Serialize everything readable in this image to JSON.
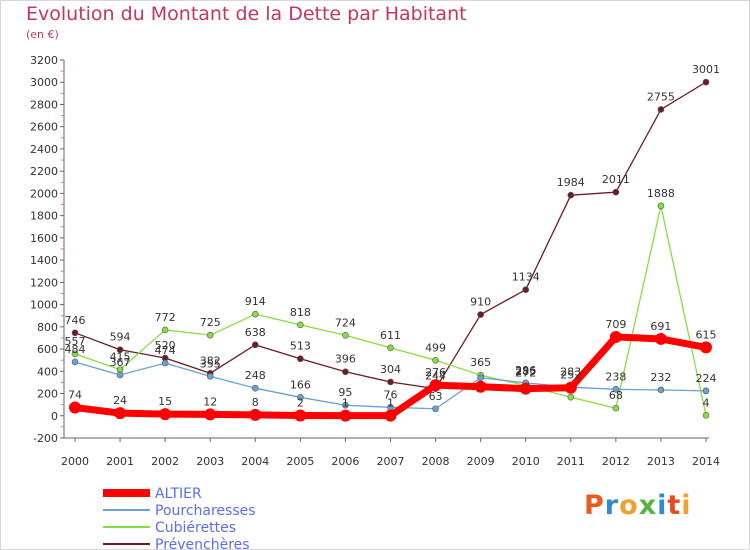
{
  "chart_data": {
    "type": "line",
    "title": "Evolution du Montant de la Dette par Habitant",
    "unit": "(en €)",
    "x": [
      "2000",
      "2001",
      "2002",
      "2003",
      "2004",
      "2005",
      "2006",
      "2007",
      "2008",
      "2009",
      "2010",
      "2011",
      "2012",
      "2013",
      "2014"
    ],
    "ylim": [
      -200,
      3200
    ],
    "yticks": [
      -200,
      0,
      200,
      400,
      600,
      800,
      1000,
      1200,
      1400,
      1600,
      1800,
      2000,
      2200,
      2400,
      2600,
      2800,
      3000,
      3200
    ],
    "grid": false,
    "legend_position": "bottom-left",
    "series": [
      {
        "name": "ALTIER",
        "color": "#ff0000",
        "values": [
          74,
          24,
          15,
          12,
          8,
          2,
          1,
          1,
          276,
          261,
          244,
          252,
          709,
          691,
          615
        ],
        "labels": [
          "74",
          "24",
          "15",
          "12",
          "8",
          "2",
          "1",
          "1",
          "",
          "",
          "",
          "",
          "709",
          "691",
          "615"
        ]
      },
      {
        "name": "Pourcharesses",
        "color": "#6aa0d2",
        "values": [
          484,
          367,
          474,
          355,
          248,
          166,
          95,
          76,
          63,
          342,
          296,
          257,
          238,
          232,
          224
        ],
        "labels": [
          "484",
          "367",
          "474",
          "355",
          "248",
          "166",
          "95",
          "76",
          "63",
          "",
          "",
          "",
          "238",
          "232",
          "224"
        ]
      },
      {
        "name": "Cubiérettes",
        "color": "#88dd44",
        "values": [
          557,
          415,
          772,
          725,
          914,
          818,
          724,
          611,
          499,
          365,
          272,
          167,
          68,
          1888,
          4
        ],
        "labels": [
          "557",
          "415",
          "772",
          "725",
          "914",
          "818",
          "724",
          "611",
          "499",
          "",
          "",
          "",
          "68",
          "1888",
          "4"
        ]
      },
      {
        "name": "Prévenchères",
        "color": "#6b1c24",
        "values": [
          746,
          594,
          520,
          382,
          638,
          513,
          396,
          304,
          244,
          910,
          1134,
          1984,
          2011,
          2755,
          3001
        ],
        "labels": [
          "746",
          "594",
          "520",
          "382",
          "638",
          "513",
          "396",
          "304",
          "",
          "910",
          "1134",
          "1984",
          "2011",
          "2755",
          "3001"
        ]
      }
    ],
    "extra_labels": [
      "276",
      "244",
      "365",
      "285",
      "272",
      "296",
      "283",
      "252"
    ]
  },
  "logo": {
    "text": "Proxiti",
    "colors": [
      "#e85d1f",
      "#2f8dcd",
      "#f0a22e",
      "#5ab043",
      "#2f8dcd",
      "#e8491f",
      "#f0a22e"
    ]
  },
  "colors": {
    "axis": "#666666",
    "title": "#c2375e",
    "legend_text": "#5b6ee8"
  }
}
